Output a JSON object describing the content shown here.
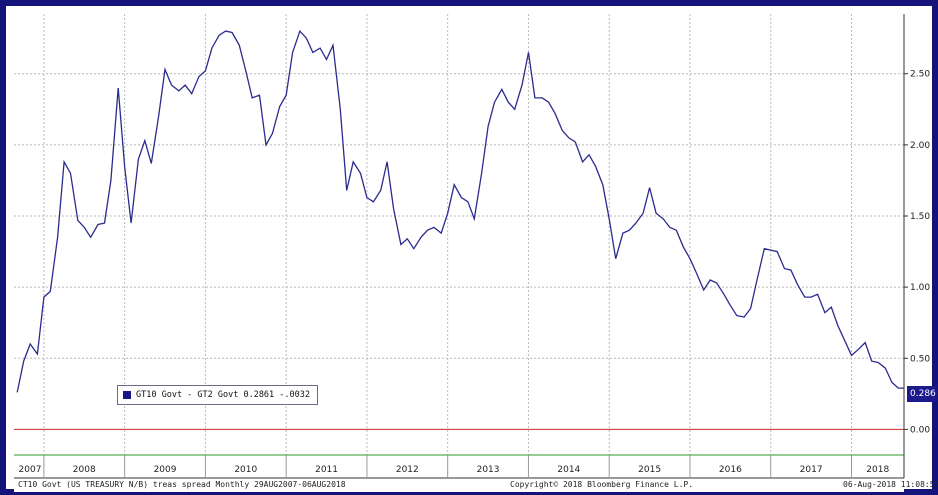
{
  "chart_data": {
    "type": "line",
    "legend_text": "GT10 Govt - GT2 Govt 0.2861  -.0032",
    "legend_color": "#16168a",
    "last_value_label": "0.286",
    "footer_left": "CT10 Govt (US TREASURY N/B) treas spread  Monthly 29AUG2007-06AUG2018",
    "footer_center": "Copyright© 2018 Bloomberg Finance L.P.",
    "footer_right": "06-Aug-2018 11:08:50",
    "y_ticks": [
      {
        "value": 2.5,
        "label": "2.50"
      },
      {
        "value": 2.0,
        "label": "2.00"
      },
      {
        "value": 1.5,
        "label": "1.50"
      },
      {
        "value": 1.0,
        "label": "1.00"
      },
      {
        "value": 0.5,
        "label": "0.50"
      },
      {
        "value": 0.0,
        "label": "0.00"
      }
    ],
    "x_ticks": [
      "2007",
      "2008",
      "2009",
      "2010",
      "2011",
      "2012",
      "2013",
      "2014",
      "2015",
      "2016",
      "2017",
      "2018"
    ],
    "ylim": [
      -0.18,
      2.92
    ],
    "xlim": [
      2007.63,
      2018.65
    ],
    "grid": true,
    "zero_line_color": "#d22020",
    "axis_line_color": "#2a9a2a",
    "series": [
      {
        "color": "#2b2b8f",
        "points": [
          [
            2007.67,
            0.26
          ],
          [
            2007.75,
            0.48
          ],
          [
            2007.83,
            0.6
          ],
          [
            2007.92,
            0.53
          ],
          [
            2008.0,
            0.93
          ],
          [
            2008.08,
            0.97
          ],
          [
            2008.17,
            1.35
          ],
          [
            2008.25,
            1.88
          ],
          [
            2008.33,
            1.8
          ],
          [
            2008.42,
            1.47
          ],
          [
            2008.5,
            1.42
          ],
          [
            2008.58,
            1.35
          ],
          [
            2008.67,
            1.44
          ],
          [
            2008.75,
            1.45
          ],
          [
            2008.83,
            1.75
          ],
          [
            2008.92,
            2.4
          ],
          [
            2009.0,
            1.85
          ],
          [
            2009.08,
            1.45
          ],
          [
            2009.17,
            1.9
          ],
          [
            2009.25,
            2.03
          ],
          [
            2009.33,
            1.87
          ],
          [
            2009.42,
            2.2
          ],
          [
            2009.5,
            2.53
          ],
          [
            2009.58,
            2.42
          ],
          [
            2009.67,
            2.38
          ],
          [
            2009.75,
            2.42
          ],
          [
            2009.83,
            2.36
          ],
          [
            2009.92,
            2.48
          ],
          [
            2010.0,
            2.52
          ],
          [
            2010.08,
            2.68
          ],
          [
            2010.17,
            2.77
          ],
          [
            2010.25,
            2.8
          ],
          [
            2010.33,
            2.79
          ],
          [
            2010.42,
            2.7
          ],
          [
            2010.5,
            2.52
          ],
          [
            2010.58,
            2.33
          ],
          [
            2010.67,
            2.35
          ],
          [
            2010.75,
            2.0
          ],
          [
            2010.83,
            2.08
          ],
          [
            2010.92,
            2.27
          ],
          [
            2011.0,
            2.35
          ],
          [
            2011.08,
            2.65
          ],
          [
            2011.17,
            2.8
          ],
          [
            2011.25,
            2.75
          ],
          [
            2011.33,
            2.65
          ],
          [
            2011.42,
            2.68
          ],
          [
            2011.5,
            2.6
          ],
          [
            2011.58,
            2.7
          ],
          [
            2011.67,
            2.25
          ],
          [
            2011.75,
            1.68
          ],
          [
            2011.83,
            1.88
          ],
          [
            2011.92,
            1.8
          ],
          [
            2012.0,
            1.63
          ],
          [
            2012.08,
            1.6
          ],
          [
            2012.17,
            1.68
          ],
          [
            2012.25,
            1.88
          ],
          [
            2012.33,
            1.55
          ],
          [
            2012.42,
            1.3
          ],
          [
            2012.5,
            1.34
          ],
          [
            2012.58,
            1.27
          ],
          [
            2012.67,
            1.35
          ],
          [
            2012.75,
            1.4
          ],
          [
            2012.83,
            1.42
          ],
          [
            2012.92,
            1.38
          ],
          [
            2013.0,
            1.52
          ],
          [
            2013.08,
            1.72
          ],
          [
            2013.17,
            1.63
          ],
          [
            2013.25,
            1.6
          ],
          [
            2013.33,
            1.48
          ],
          [
            2013.42,
            1.8
          ],
          [
            2013.5,
            2.13
          ],
          [
            2013.58,
            2.3
          ],
          [
            2013.67,
            2.39
          ],
          [
            2013.75,
            2.3
          ],
          [
            2013.83,
            2.25
          ],
          [
            2013.92,
            2.42
          ],
          [
            2014.0,
            2.65
          ],
          [
            2014.08,
            2.33
          ],
          [
            2014.17,
            2.33
          ],
          [
            2014.25,
            2.3
          ],
          [
            2014.33,
            2.22
          ],
          [
            2014.42,
            2.1
          ],
          [
            2014.5,
            2.05
          ],
          [
            2014.58,
            2.02
          ],
          [
            2014.67,
            1.88
          ],
          [
            2014.75,
            1.93
          ],
          [
            2014.83,
            1.85
          ],
          [
            2014.92,
            1.72
          ],
          [
            2015.0,
            1.48
          ],
          [
            2015.08,
            1.2
          ],
          [
            2015.17,
            1.38
          ],
          [
            2015.25,
            1.4
          ],
          [
            2015.33,
            1.45
          ],
          [
            2015.42,
            1.52
          ],
          [
            2015.5,
            1.7
          ],
          [
            2015.58,
            1.52
          ],
          [
            2015.67,
            1.48
          ],
          [
            2015.75,
            1.42
          ],
          [
            2015.83,
            1.4
          ],
          [
            2015.92,
            1.28
          ],
          [
            2016.0,
            1.2
          ],
          [
            2016.08,
            1.1
          ],
          [
            2016.17,
            0.98
          ],
          [
            2016.25,
            1.05
          ],
          [
            2016.33,
            1.03
          ],
          [
            2016.42,
            0.95
          ],
          [
            2016.5,
            0.87
          ],
          [
            2016.58,
            0.8
          ],
          [
            2016.67,
            0.79
          ],
          [
            2016.75,
            0.85
          ],
          [
            2016.83,
            1.05
          ],
          [
            2016.92,
            1.27
          ],
          [
            2017.0,
            1.26
          ],
          [
            2017.08,
            1.25
          ],
          [
            2017.17,
            1.13
          ],
          [
            2017.25,
            1.12
          ],
          [
            2017.33,
            1.02
          ],
          [
            2017.42,
            0.93
          ],
          [
            2017.5,
            0.93
          ],
          [
            2017.58,
            0.95
          ],
          [
            2017.67,
            0.82
          ],
          [
            2017.75,
            0.86
          ],
          [
            2017.83,
            0.73
          ],
          [
            2017.92,
            0.62
          ],
          [
            2018.0,
            0.52
          ],
          [
            2018.08,
            0.56
          ],
          [
            2018.17,
            0.61
          ],
          [
            2018.25,
            0.48
          ],
          [
            2018.33,
            0.47
          ],
          [
            2018.42,
            0.43
          ],
          [
            2018.5,
            0.33
          ],
          [
            2018.58,
            0.29
          ],
          [
            2018.65,
            0.29
          ]
        ]
      }
    ]
  }
}
